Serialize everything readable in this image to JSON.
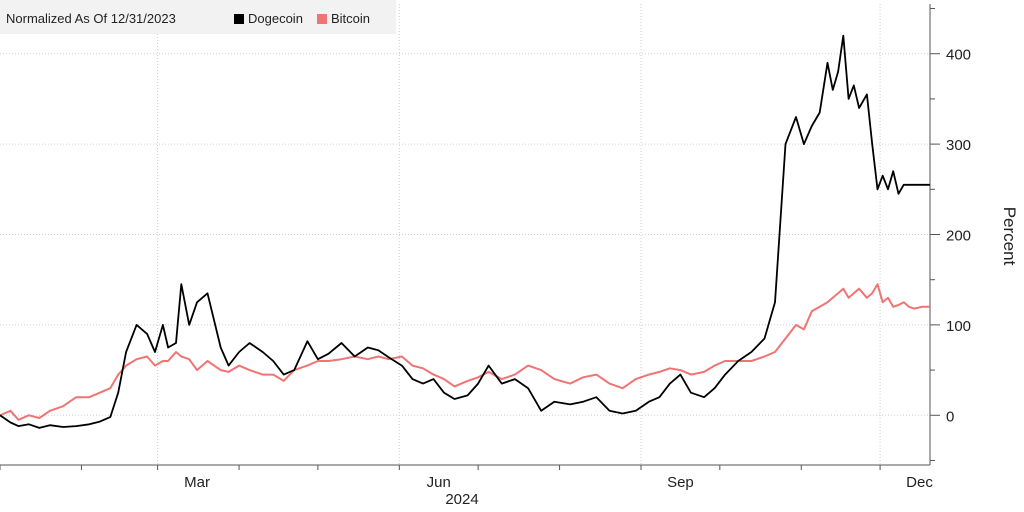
{
  "chart_data": {
    "type": "line",
    "legend": {
      "label": "Normalized As Of 12/31/2023",
      "placement": "top-left",
      "entries": [
        {
          "name": "Dogecoin",
          "color": "#000000"
        },
        {
          "name": "Bitcoin",
          "color": "#f07474"
        }
      ]
    },
    "x_tick_labels": [
      "Mar",
      "Jun",
      "Sep",
      "Dec"
    ],
    "x_year_label": "2024",
    "ylabel": "Percent",
    "ylim": [
      -55,
      455
    ],
    "y_ticks": [
      0,
      100,
      200,
      300,
      400
    ],
    "grid": true,
    "x_range": [
      "2024-01-01",
      "2024-12-20"
    ],
    "series": [
      {
        "name": "Dogecoin",
        "color": "#000000",
        "x": [
          "2024-01-01",
          "2024-01-05",
          "2024-01-08",
          "2024-01-12",
          "2024-01-16",
          "2024-01-20",
          "2024-01-25",
          "2024-01-30",
          "2024-02-04",
          "2024-02-08",
          "2024-02-12",
          "2024-02-15",
          "2024-02-18",
          "2024-02-22",
          "2024-02-26",
          "2024-02-29",
          "2024-03-03",
          "2024-03-05",
          "2024-03-08",
          "2024-03-10",
          "2024-03-13",
          "2024-03-16",
          "2024-03-20",
          "2024-03-25",
          "2024-03-28",
          "2024-04-01",
          "2024-04-05",
          "2024-04-10",
          "2024-04-14",
          "2024-04-18",
          "2024-04-22",
          "2024-04-27",
          "2024-05-01",
          "2024-05-05",
          "2024-05-10",
          "2024-05-15",
          "2024-05-20",
          "2024-05-24",
          "2024-05-28",
          "2024-06-02",
          "2024-06-06",
          "2024-06-10",
          "2024-06-14",
          "2024-06-18",
          "2024-06-22",
          "2024-06-27",
          "2024-07-01",
          "2024-07-05",
          "2024-07-10",
          "2024-07-15",
          "2024-07-20",
          "2024-07-25",
          "2024-07-30",
          "2024-08-05",
          "2024-08-10",
          "2024-08-15",
          "2024-08-20",
          "2024-08-25",
          "2024-08-30",
          "2024-09-04",
          "2024-09-08",
          "2024-09-12",
          "2024-09-16",
          "2024-09-20",
          "2024-09-25",
          "2024-09-29",
          "2024-10-03",
          "2024-10-08",
          "2024-10-13",
          "2024-10-18",
          "2024-10-22",
          "2024-10-26",
          "2024-10-30",
          "2024-11-02",
          "2024-11-05",
          "2024-11-08",
          "2024-11-11",
          "2024-11-13",
          "2024-11-15",
          "2024-11-17",
          "2024-11-19",
          "2024-11-21",
          "2024-11-23",
          "2024-11-26",
          "2024-11-28",
          "2024-11-30",
          "2024-12-02",
          "2024-12-04",
          "2024-12-06",
          "2024-12-08",
          "2024-12-10",
          "2024-12-12",
          "2024-12-14",
          "2024-12-17",
          "2024-12-20"
        ],
        "values": [
          0,
          -8,
          -12,
          -10,
          -14,
          -11,
          -13,
          -12,
          -10,
          -7,
          -2,
          25,
          70,
          100,
          90,
          70,
          100,
          75,
          80,
          145,
          100,
          125,
          135,
          75,
          55,
          70,
          80,
          70,
          60,
          45,
          50,
          82,
          62,
          68,
          80,
          65,
          75,
          72,
          64,
          55,
          40,
          35,
          40,
          25,
          18,
          22,
          35,
          55,
          35,
          40,
          30,
          5,
          15,
          12,
          15,
          20,
          5,
          2,
          5,
          15,
          20,
          35,
          45,
          25,
          20,
          30,
          45,
          60,
          70,
          85,
          125,
          300,
          330,
          300,
          320,
          335,
          390,
          360,
          380,
          420,
          350,
          365,
          340,
          355,
          300,
          250,
          265,
          250,
          270,
          245,
          255,
          255,
          255,
          255,
          255
        ]
      },
      {
        "name": "Bitcoin",
        "color": "#f07474",
        "x": [
          "2024-01-01",
          "2024-01-05",
          "2024-01-08",
          "2024-01-12",
          "2024-01-16",
          "2024-01-20",
          "2024-01-25",
          "2024-01-30",
          "2024-02-04",
          "2024-02-08",
          "2024-02-12",
          "2024-02-15",
          "2024-02-18",
          "2024-02-22",
          "2024-02-26",
          "2024-02-29",
          "2024-03-03",
          "2024-03-05",
          "2024-03-08",
          "2024-03-10",
          "2024-03-13",
          "2024-03-16",
          "2024-03-20",
          "2024-03-25",
          "2024-03-28",
          "2024-04-01",
          "2024-04-05",
          "2024-04-10",
          "2024-04-14",
          "2024-04-18",
          "2024-04-22",
          "2024-04-27",
          "2024-05-01",
          "2024-05-05",
          "2024-05-10",
          "2024-05-15",
          "2024-05-20",
          "2024-05-24",
          "2024-05-28",
          "2024-06-02",
          "2024-06-06",
          "2024-06-10",
          "2024-06-14",
          "2024-06-18",
          "2024-06-22",
          "2024-06-27",
          "2024-07-01",
          "2024-07-05",
          "2024-07-10",
          "2024-07-15",
          "2024-07-20",
          "2024-07-25",
          "2024-07-30",
          "2024-08-05",
          "2024-08-10",
          "2024-08-15",
          "2024-08-20",
          "2024-08-25",
          "2024-08-30",
          "2024-09-04",
          "2024-09-08",
          "2024-09-12",
          "2024-09-16",
          "2024-09-20",
          "2024-09-25",
          "2024-09-29",
          "2024-10-03",
          "2024-10-08",
          "2024-10-13",
          "2024-10-18",
          "2024-10-22",
          "2024-10-26",
          "2024-10-30",
          "2024-11-02",
          "2024-11-05",
          "2024-11-08",
          "2024-11-11",
          "2024-11-13",
          "2024-11-15",
          "2024-11-17",
          "2024-11-19",
          "2024-11-21",
          "2024-11-23",
          "2024-11-26",
          "2024-11-28",
          "2024-11-30",
          "2024-12-02",
          "2024-12-04",
          "2024-12-06",
          "2024-12-08",
          "2024-12-10",
          "2024-12-12",
          "2024-12-14",
          "2024-12-17",
          "2024-12-20"
        ],
        "values": [
          0,
          5,
          -5,
          0,
          -3,
          5,
          10,
          20,
          20,
          25,
          30,
          45,
          55,
          62,
          65,
          55,
          60,
          60,
          70,
          65,
          62,
          50,
          60,
          50,
          48,
          55,
          50,
          45,
          45,
          38,
          50,
          55,
          60,
          60,
          62,
          65,
          62,
          65,
          62,
          65,
          55,
          52,
          45,
          40,
          32,
          38,
          42,
          48,
          40,
          45,
          55,
          50,
          40,
          35,
          42,
          45,
          35,
          30,
          40,
          45,
          48,
          52,
          50,
          45,
          48,
          55,
          60,
          60,
          60,
          65,
          70,
          85,
          100,
          95,
          115,
          120,
          125,
          130,
          135,
          140,
          130,
          135,
          140,
          130,
          135,
          145,
          125,
          130,
          120,
          122,
          125,
          120,
          118,
          120,
          120
        ]
      }
    ]
  }
}
